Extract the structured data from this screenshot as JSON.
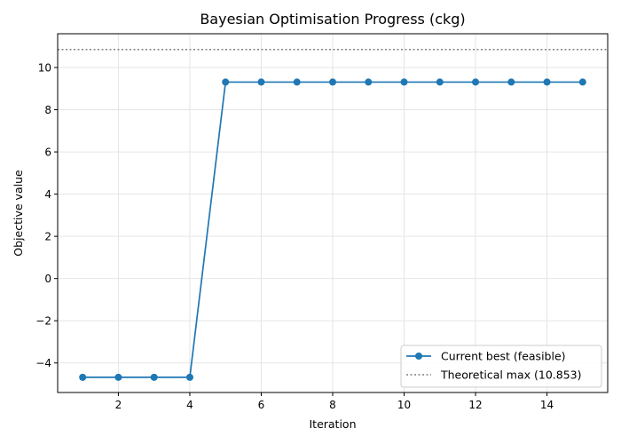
{
  "chart_data": {
    "type": "line",
    "title": "Bayesian Optimisation Progress (ckg)",
    "xlabel": "Iteration",
    "ylabel": "Objective value",
    "xlim": [
      0.3,
      15.7
    ],
    "ylim": [
      -5.4,
      11.6
    ],
    "xticks": [
      2,
      4,
      6,
      8,
      10,
      12,
      14
    ],
    "yticks": [
      -4,
      -2,
      0,
      2,
      4,
      6,
      8,
      10
    ],
    "grid": true,
    "legend_position": "lower-right",
    "series": [
      {
        "name": "Current best (feasible)",
        "color": "#1f77b4",
        "marker": "circle",
        "x": [
          1,
          2,
          3,
          4,
          5,
          6,
          7,
          8,
          9,
          10,
          11,
          12,
          13,
          14,
          15
        ],
        "y": [
          -4.68,
          -4.68,
          -4.68,
          -4.68,
          9.31,
          9.31,
          9.31,
          9.31,
          9.31,
          9.31,
          9.31,
          9.31,
          9.31,
          9.31,
          9.31
        ]
      }
    ],
    "reference_lines": [
      {
        "name": "Theoretical max (10.853)",
        "y": 10.853,
        "color": "#808080",
        "style": "dotted"
      }
    ]
  }
}
